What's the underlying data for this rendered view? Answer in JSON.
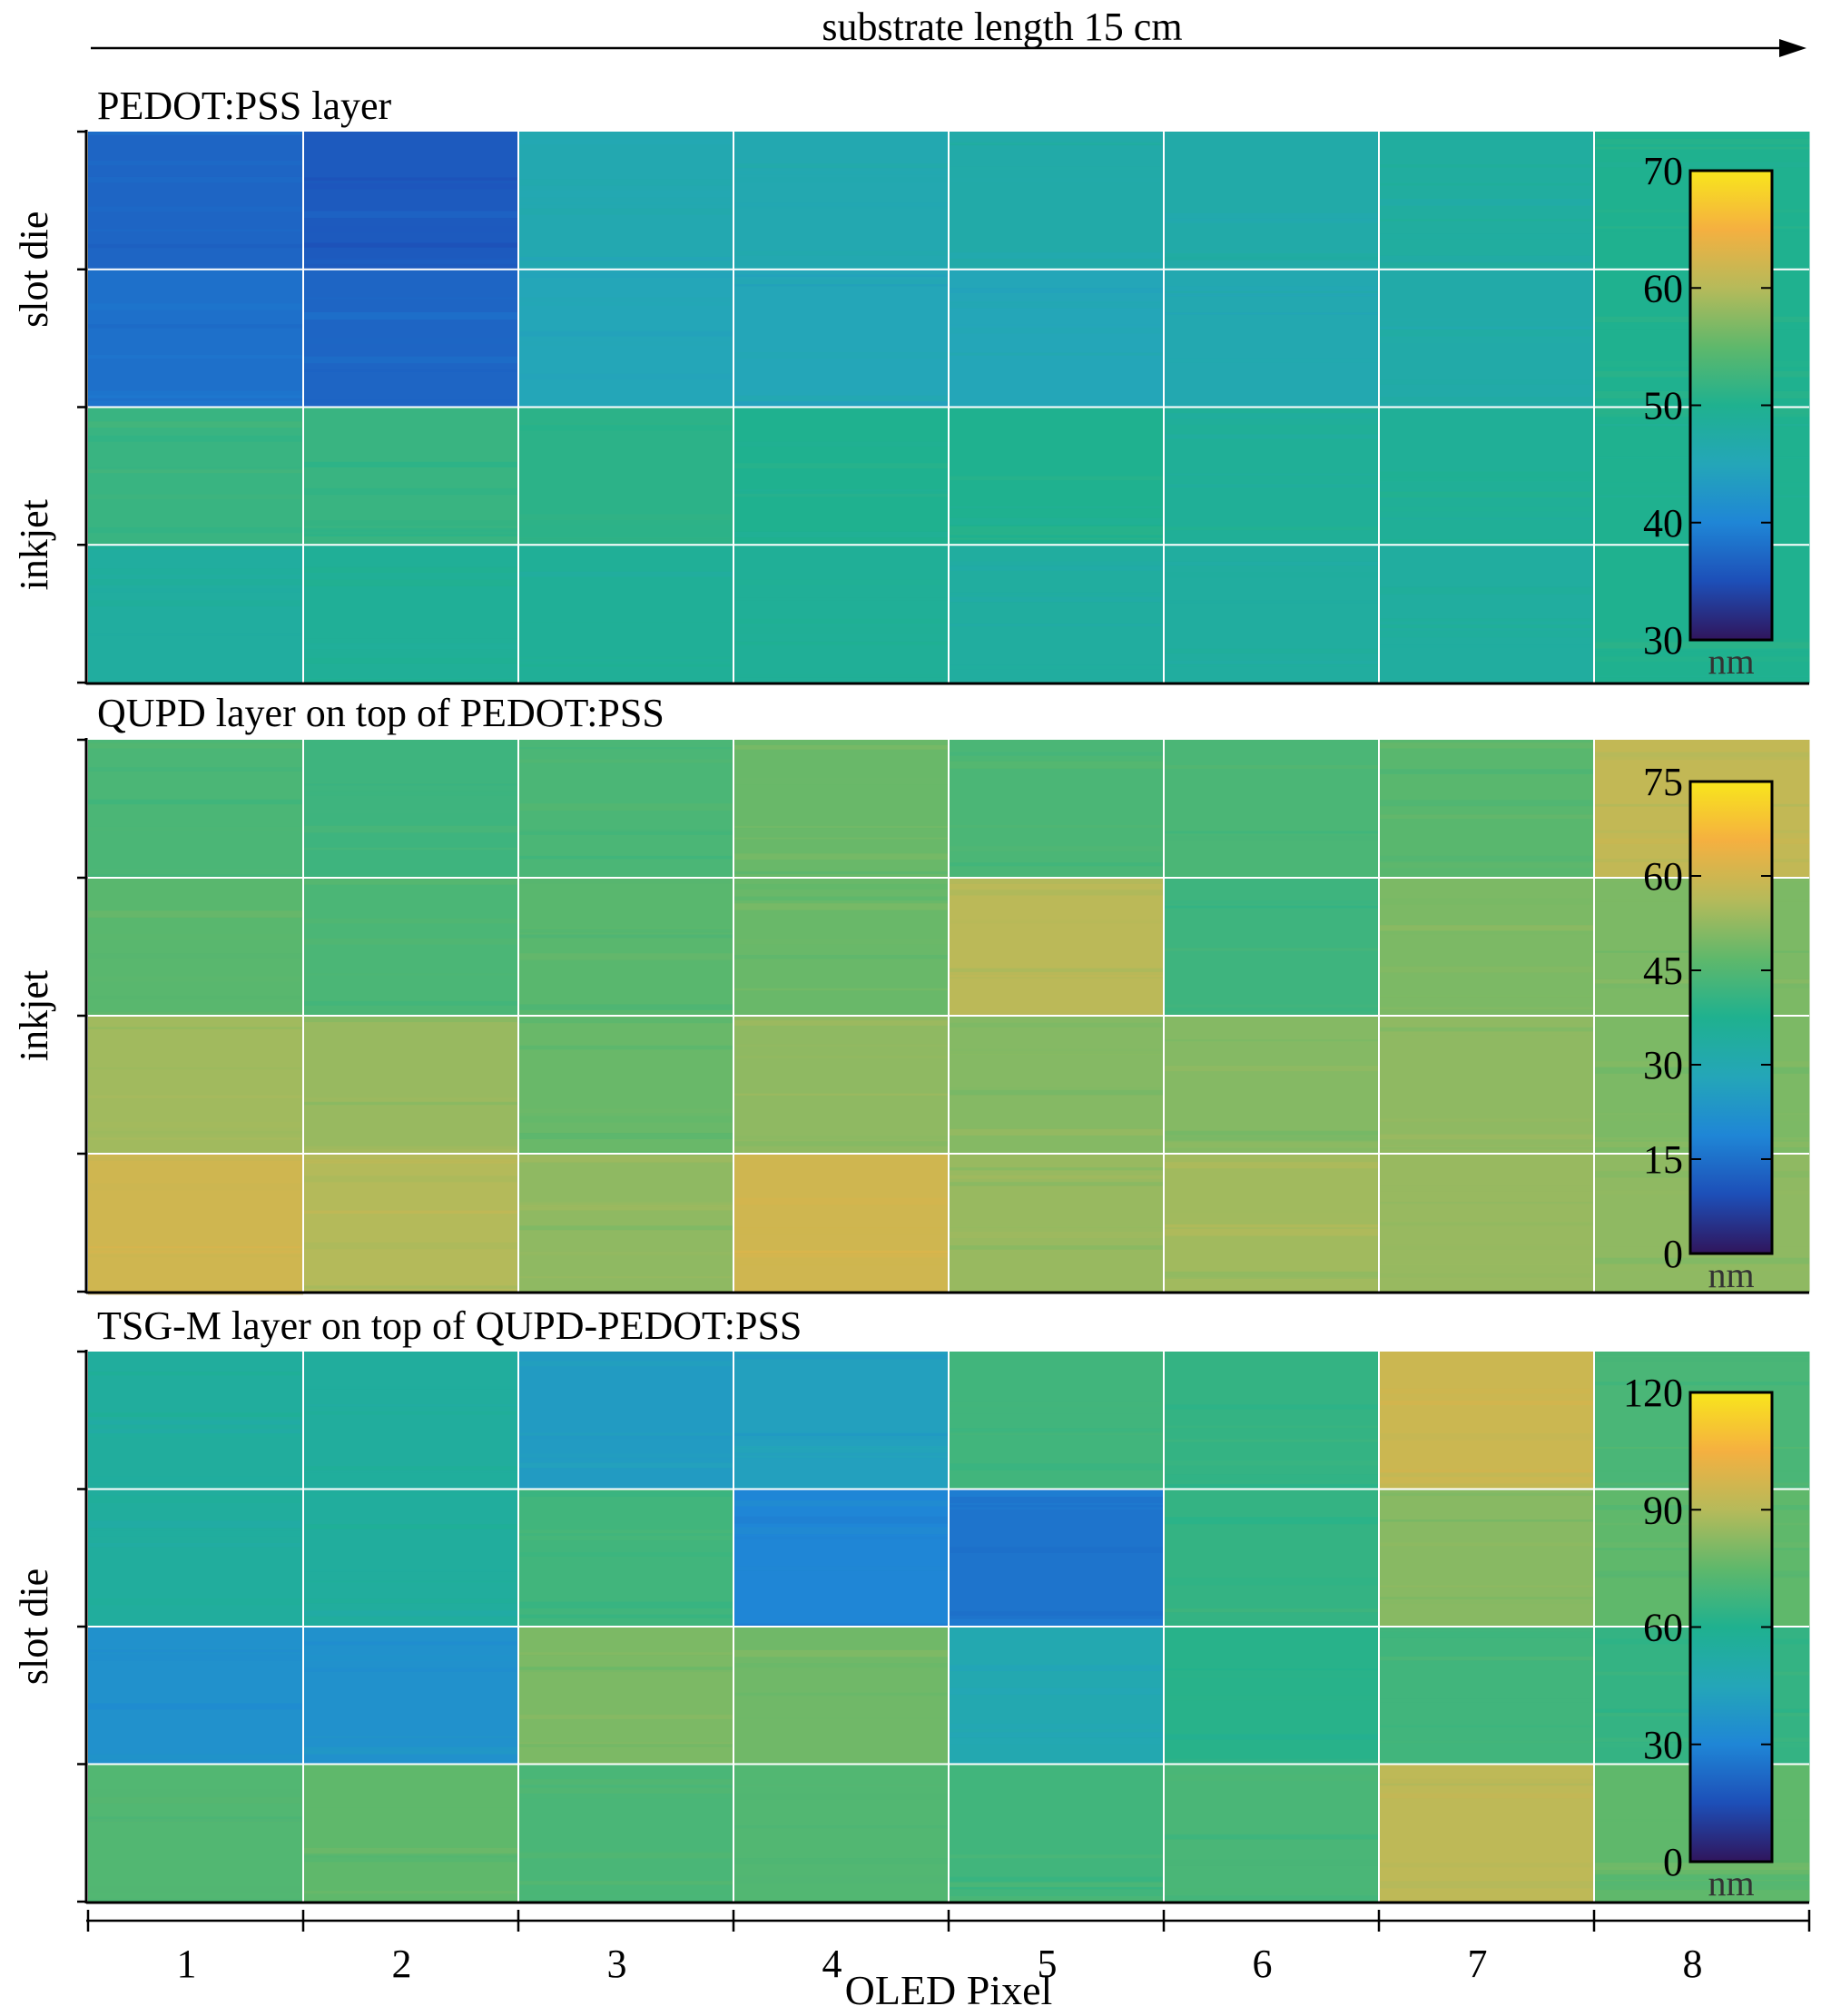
{
  "figure": {
    "top_annotation": "substrate length 15 cm",
    "xlabel": "OLED Pixel",
    "colorbar_unit": "nm"
  },
  "colors": {
    "colormap": [
      "#30155c",
      "#1d4fb8",
      "#1f86d6",
      "#24a6b8",
      "#1fb18f",
      "#5fb86b",
      "#b6ba5a",
      "#f5b040",
      "#f8e61c"
    ],
    "grid": "#ffffff",
    "axis": "#000000"
  },
  "chart_data": [
    {
      "type": "heatmap",
      "title": "PEDOT:PSS layer",
      "xlabel": "OLED Pixel",
      "x_categories": [
        "1",
        "2",
        "3",
        "4",
        "5",
        "6",
        "7",
        "8"
      ],
      "row_groups": [
        {
          "label": "slot die",
          "rows": 2
        },
        {
          "label": "inkjet",
          "rows": 2
        }
      ],
      "colorbar": {
        "min": 30,
        "max": 70,
        "ticks": [
          30,
          40,
          50,
          60,
          70
        ],
        "unit": "nm"
      },
      "values": [
        [
          37,
          36,
          46,
          46,
          47,
          47,
          48,
          50
        ],
        [
          38,
          37,
          45,
          45,
          45,
          46,
          47,
          50
        ],
        [
          52,
          52,
          51,
          50,
          50,
          49,
          49,
          50
        ],
        [
          48,
          49,
          49,
          49,
          48,
          48,
          48,
          50
        ]
      ]
    },
    {
      "type": "heatmap",
      "title": "QUPD layer on top of PEDOT:PSS",
      "xlabel": "OLED Pixel",
      "x_categories": [
        "1",
        "2",
        "3",
        "4",
        "5",
        "6",
        "7",
        "8"
      ],
      "row_groups": [
        {
          "label": "inkjet",
          "rows": 4
        }
      ],
      "colorbar": {
        "min": 0,
        "max": 75,
        "ticks": [
          0,
          15,
          30,
          45,
          60,
          75
        ],
        "unit": "nm"
      },
      "values": [
        [
          44,
          42,
          44,
          48,
          44,
          44,
          46,
          58
        ],
        [
          46,
          44,
          46,
          48,
          57,
          42,
          50,
          50
        ],
        [
          54,
          53,
          48,
          52,
          51,
          51,
          52,
          50
        ],
        [
          60,
          56,
          52,
          60,
          53,
          54,
          53,
          52
        ]
      ]
    },
    {
      "type": "heatmap",
      "title": "TSG-M layer on top of QUPD-PEDOT:PSS",
      "xlabel": "OLED Pixel",
      "x_categories": [
        "1",
        "2",
        "3",
        "4",
        "5",
        "6",
        "7",
        "8"
      ],
      "row_groups": [
        {
          "label": "slot die",
          "rows": 4
        }
      ],
      "colorbar": {
        "min": 0,
        "max": 120,
        "ticks": [
          0,
          30,
          60,
          90,
          120
        ],
        "unit": "nm"
      },
      "values": [
        [
          55,
          55,
          40,
          42,
          68,
          65,
          95,
          70
        ],
        [
          55,
          55,
          68,
          30,
          25,
          65,
          82,
          75
        ],
        [
          35,
          35,
          80,
          78,
          48,
          62,
          68,
          65
        ],
        [
          72,
          75,
          70,
          72,
          68,
          70,
          92,
          75
        ]
      ]
    }
  ]
}
